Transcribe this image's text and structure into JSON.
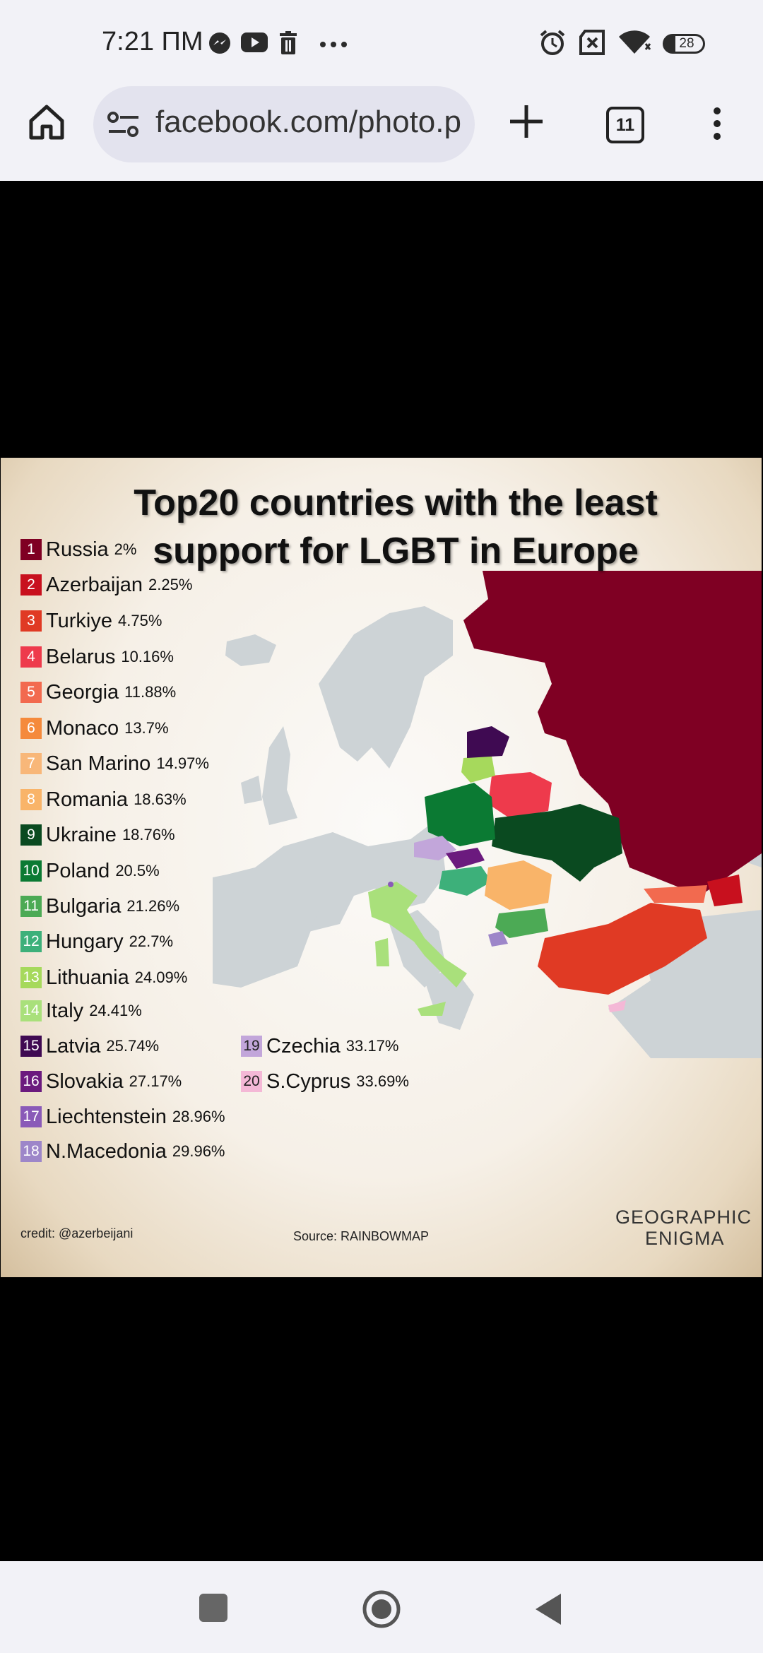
{
  "status_bar": {
    "time": "7:21 ПМ",
    "battery": "28",
    "left_icons": [
      "messenger-icon",
      "youtube-icon",
      "trash-icon",
      "more-dots-icon"
    ],
    "right_icons": [
      "alarm-icon",
      "no-sim-icon",
      "wifi-icon",
      "battery-icon"
    ]
  },
  "browser": {
    "url": "facebook.com/photo.php?fbid",
    "tab_count": "11"
  },
  "image": {
    "title_line1": "Top20 countries with the least",
    "title_line2": "support for LGBT in Europe",
    "legend": [
      {
        "rank": "1",
        "country": "Russia",
        "percent": "2%",
        "color": "#7f0023"
      },
      {
        "rank": "2",
        "country": "Azerbaijan",
        "percent": "2.25%",
        "color": "#c8101e"
      },
      {
        "rank": "3",
        "country": "Turkiye",
        "percent": "4.75%",
        "color": "#e03a24"
      },
      {
        "rank": "4",
        "country": "Belarus",
        "percent": "10.16%",
        "color": "#ee3a4c"
      },
      {
        "rank": "5",
        "country": "Georgia",
        "percent": "11.88%",
        "color": "#f26a4f"
      },
      {
        "rank": "6",
        "country": "Monaco",
        "percent": "13.7%",
        "color": "#f58a3c"
      },
      {
        "rank": "7",
        "country": "San Marino",
        "percent": "14.97%",
        "color": "#f8b779"
      },
      {
        "rank": "8",
        "country": "Romania",
        "percent": "18.63%",
        "color": "#f9b469"
      },
      {
        "rank": "9",
        "country": "Ukraine",
        "percent": "18.76%",
        "color": "#0a4a20"
      },
      {
        "rank": "10",
        "country": "Poland",
        "percent": "20.5%",
        "color": "#0b7a33"
      },
      {
        "rank": "11",
        "country": "Bulgaria",
        "percent": "21.26%",
        "color": "#4caa55"
      },
      {
        "rank": "12",
        "country": "Hungary",
        "percent": "22.7%",
        "color": "#3db07a"
      },
      {
        "rank": "13",
        "country": "Lithuania",
        "percent": "24.09%",
        "color": "#a6d95c"
      },
      {
        "rank": "14",
        "country": "Italy",
        "percent": "24.41%",
        "color": "#a9e07b"
      },
      {
        "rank": "15",
        "country": "Latvia",
        "percent": "25.74%",
        "color": "#3f0a52"
      },
      {
        "rank": "16",
        "country": "Slovakia",
        "percent": "27.17%",
        "color": "#6b1a7e"
      },
      {
        "rank": "17",
        "country": "Liechtenstein",
        "percent": "28.96%",
        "color": "#8a5ab8"
      },
      {
        "rank": "18",
        "country": "N.Macedonia",
        "percent": "29.96%",
        "color": "#9d86c9"
      },
      {
        "rank": "19",
        "country": "Czechia",
        "percent": "33.17%",
        "color": "#c2a6da"
      },
      {
        "rank": "20",
        "country": "S.Cyprus",
        "percent": "33.69%",
        "color": "#f4b8d6"
      }
    ],
    "credit": "credit: @azerbeijani",
    "source": "Source: RAINBOWMAP",
    "brand_line1": "GEOGRAPHIC",
    "brand_line2": "ENIGMA"
  },
  "nav_bar": {
    "buttons": [
      "recents-square-icon",
      "home-circle-icon",
      "back-triangle-icon"
    ]
  }
}
